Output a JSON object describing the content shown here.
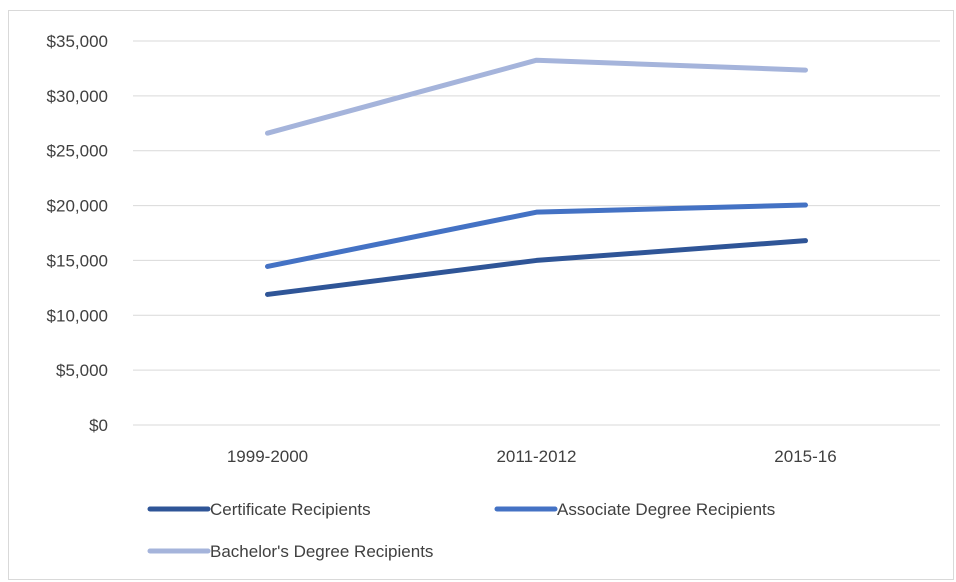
{
  "chart_data": {
    "type": "line",
    "categories": [
      "1999-2000",
      "2011-2012",
      "2015-16"
    ],
    "series": [
      {
        "name": "Certificate Recipients",
        "values": [
          11900,
          15000,
          16800
        ],
        "color": "#2f5597"
      },
      {
        "name": "Associate Degree Recipients",
        "values": [
          14450,
          19400,
          20050
        ],
        "color": "#4472c4"
      },
      {
        "name": "Bachelor's Degree Recipients",
        "values": [
          26600,
          33250,
          32350
        ],
        "color": "#a5b4db"
      }
    ],
    "ylim": [
      0,
      35000
    ],
    "y_ticks": [
      0,
      5000,
      10000,
      15000,
      20000,
      25000,
      30000,
      35000
    ],
    "y_tick_labels": [
      "$0",
      "$5,000",
      "$10,000",
      "$15,000",
      "$20,000",
      "$25,000",
      "$30,000",
      "$35,000"
    ],
    "grid": true,
    "legend_position": "bottom"
  }
}
